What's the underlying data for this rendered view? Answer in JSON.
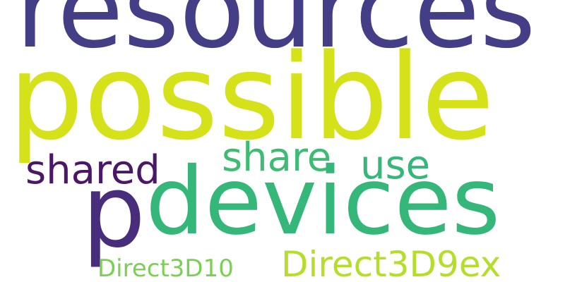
{
  "words": {
    "resources": {
      "text": "resources",
      "color": "#433e85"
    },
    "possible": {
      "text": "possible",
      "color": "#d5e21a"
    },
    "shared": {
      "text": "shared",
      "color": "#4b1867"
    },
    "share": {
      "text": "share",
      "color": "#3fbc73"
    },
    "use": {
      "text": "use",
      "color": "#35b779"
    },
    "p": {
      "text": "p",
      "color": "#472d7b"
    },
    "devices": {
      "text": "devices",
      "color": "#35b779"
    },
    "direct3d10": {
      "text": "Direct3D10",
      "color": "#7ad151"
    },
    "direct3d9ex": {
      "text": "Direct3D9ex",
      "color": "#b5de2b"
    }
  }
}
